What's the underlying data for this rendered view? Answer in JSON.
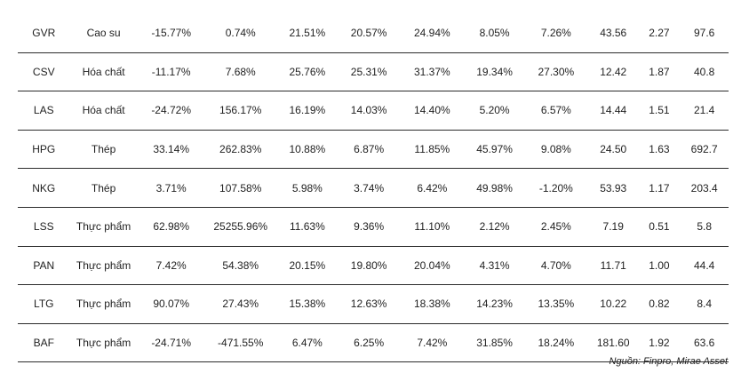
{
  "table": {
    "rows": [
      [
        "GVR",
        "Cao su",
        "-15.77%",
        "0.74%",
        "21.51%",
        "20.57%",
        "24.94%",
        "8.05%",
        "7.26%",
        "43.56",
        "2.27",
        "97.6"
      ],
      [
        "CSV",
        "Hóa chất",
        "-11.17%",
        "7.68%",
        "25.76%",
        "25.31%",
        "31.37%",
        "19.34%",
        "27.30%",
        "12.42",
        "1.87",
        "40.8"
      ],
      [
        "LAS",
        "Hóa chất",
        "-24.72%",
        "156.17%",
        "16.19%",
        "14.03%",
        "14.40%",
        "5.20%",
        "6.57%",
        "14.44",
        "1.51",
        "21.4"
      ],
      [
        "HPG",
        "Thép",
        "33.14%",
        "262.83%",
        "10.88%",
        "6.87%",
        "11.85%",
        "45.97%",
        "9.08%",
        "24.50",
        "1.63",
        "692.7"
      ],
      [
        "NKG",
        "Thép",
        "3.71%",
        "107.58%",
        "5.98%",
        "3.74%",
        "6.42%",
        "49.98%",
        "-1.20%",
        "53.93",
        "1.17",
        "203.4"
      ],
      [
        "LSS",
        "Thực phẩm",
        "62.98%",
        "25255.96%",
        "11.63%",
        "9.36%",
        "11.10%",
        "2.12%",
        "2.45%",
        "7.19",
        "0.51",
        "5.8"
      ],
      [
        "PAN",
        "Thực phẩm",
        "7.42%",
        "54.38%",
        "20.15%",
        "19.80%",
        "20.04%",
        "4.31%",
        "4.70%",
        "11.71",
        "1.00",
        "44.4"
      ],
      [
        "LTG",
        "Thực phẩm",
        "90.07%",
        "27.43%",
        "15.38%",
        "12.63%",
        "18.38%",
        "14.23%",
        "13.35%",
        "10.22",
        "0.82",
        "8.4"
      ],
      [
        "BAF",
        "Thực phẩm",
        "-24.71%",
        "-471.55%",
        "6.47%",
        "6.25%",
        "7.42%",
        "31.85%",
        "18.24%",
        "181.60",
        "1.92",
        "63.6"
      ]
    ]
  },
  "source": "Nguồn: Finpro, Mirae Asset"
}
